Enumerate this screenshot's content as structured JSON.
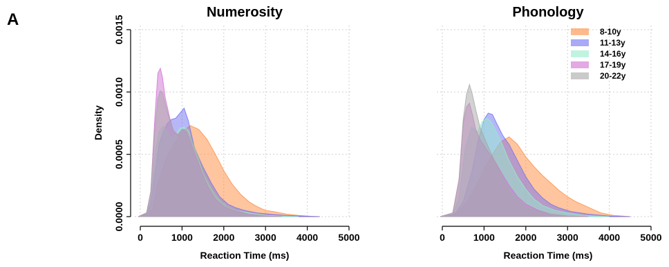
{
  "figure": {
    "panel_letter": "A"
  },
  "chart_data": [
    {
      "type": "area",
      "title": "Numerosity",
      "xlabel": "Reaction Time (ms)",
      "ylabel": "Density",
      "xlim": [
        0,
        5000
      ],
      "ylim": [
        0,
        0.0015
      ],
      "xticks": [
        "0",
        "1000",
        "2000",
        "3000",
        "4000",
        "5000"
      ],
      "yticks": [
        "0.0000",
        "0.0005",
        "0.0010",
        "0.0015"
      ],
      "grid": true,
      "legend": false,
      "series": [
        {
          "name": "8-10y",
          "color": "#ff8c3f",
          "x": [
            -50,
            150,
            300,
            400,
            600,
            800,
            1000,
            1200,
            1400,
            1600,
            1800,
            2000,
            2200,
            2400,
            2600,
            2800,
            3000,
            3200,
            3500,
            3800,
            4100,
            4300
          ],
          "y": [
            0,
            1e-05,
            6e-05,
            0.00025,
            0.00045,
            0.00058,
            0.00068,
            0.00073,
            0.0007,
            0.00062,
            0.0005,
            0.00037,
            0.00026,
            0.00018,
            0.00012,
            8e-05,
            5e-05,
            4e-05,
            2e-05,
            1e-05,
            3e-06,
            0
          ]
        },
        {
          "name": "11-13y",
          "color": "#6f6ff2",
          "x": [
            -50,
            150,
            250,
            350,
            450,
            550,
            650,
            750,
            850,
            950,
            1050,
            1150,
            1300,
            1500,
            1700,
            1900,
            2100,
            2300,
            2500,
            2800,
            3100,
            3500,
            4000,
            4300
          ],
          "y": [
            0,
            2e-05,
            0.0001,
            0.00035,
            0.00058,
            0.00068,
            0.00075,
            0.00078,
            0.00079,
            0.00083,
            0.00087,
            0.00077,
            0.00055,
            0.0004,
            0.00027,
            0.00016,
            0.0001,
            7e-05,
            5e-05,
            3e-05,
            2e-05,
            1e-05,
            3e-06,
            0
          ]
        },
        {
          "name": "14-16y",
          "color": "#96eccc",
          "x": [
            -50,
            150,
            250,
            350,
            450,
            550,
            650,
            750,
            850,
            950,
            1050,
            1150,
            1300,
            1500,
            1700,
            1900,
            2100,
            2300,
            2600,
            3000,
            3500,
            3800
          ],
          "y": [
            0,
            3e-05,
            0.00015,
            0.0005,
            0.00068,
            0.00073,
            0.00068,
            0.00062,
            0.00066,
            0.00071,
            0.00072,
            0.00069,
            0.00055,
            0.00035,
            0.00022,
            0.00013,
            8e-05,
            5e-05,
            3e-05,
            1e-05,
            3e-06,
            0
          ]
        },
        {
          "name": "17-19y",
          "color": "#cf6fd3",
          "x": [
            -50,
            150,
            250,
            350,
            420,
            480,
            530,
            600,
            700,
            800,
            900,
            1000,
            1100,
            1200,
            1400,
            1600,
            1800,
            2000,
            2300,
            2600,
            3000,
            3400
          ],
          "y": [
            0,
            3e-05,
            0.0002,
            0.0008,
            0.00115,
            0.00119,
            0.00112,
            0.00095,
            0.0008,
            0.00068,
            0.00065,
            0.0007,
            0.00068,
            0.0006,
            0.00042,
            0.00025,
            0.00014,
            8e-05,
            4e-05,
            2e-05,
            5e-06,
            0
          ]
        },
        {
          "name": "20-22y",
          "color": "#a6a6a6",
          "x": [
            -50,
            150,
            250,
            350,
            420,
            480,
            540,
            600,
            700,
            800,
            900,
            1000,
            1100,
            1200,
            1400,
            1600,
            1800,
            2000,
            2300,
            2600,
            3000,
            3400
          ],
          "y": [
            0,
            3e-05,
            0.0002,
            0.0007,
            0.00095,
            0.00101,
            0.00099,
            0.0009,
            0.00078,
            0.00069,
            0.00066,
            0.0007,
            0.0007,
            0.00064,
            0.00047,
            0.0003,
            0.00018,
            0.0001,
            5e-05,
            2e-05,
            5e-06,
            0
          ]
        }
      ]
    },
    {
      "type": "area",
      "title": "Phonology",
      "xlabel": "Reaction Time (ms)",
      "ylabel": "",
      "xlim": [
        0,
        5000
      ],
      "ylim": [
        0,
        0.0015
      ],
      "xticks": [
        "0",
        "1000",
        "2000",
        "3000",
        "4000",
        "5000"
      ],
      "grid": true,
      "legend": true,
      "legend_position": "top-right",
      "series": [
        {
          "name": "8-10y",
          "color": "#ff8c3f",
          "x": [
            -50,
            200,
            400,
            600,
            800,
            1000,
            1200,
            1400,
            1600,
            1800,
            2000,
            2200,
            2400,
            2600,
            2800,
            3000,
            3200,
            3400,
            3600,
            3800,
            4100,
            4500
          ],
          "y": [
            0,
            1e-05,
            5e-05,
            0.00012,
            0.00024,
            0.00038,
            0.0005,
            0.0006,
            0.00064,
            0.00058,
            0.00048,
            0.0004,
            0.00033,
            0.00027,
            0.00021,
            0.00016,
            0.00012,
            9e-05,
            6e-05,
            3e-05,
            1e-05,
            0
          ]
        },
        {
          "name": "11-13y",
          "color": "#6f6ff2",
          "x": [
            -50,
            300,
            500,
            700,
            850,
            1000,
            1100,
            1200,
            1300,
            1450,
            1600,
            1800,
            2000,
            2200,
            2400,
            2600,
            2800,
            3100,
            3500,
            4000,
            4500
          ],
          "y": [
            0,
            2e-05,
            0.00012,
            0.00035,
            0.0006,
            0.00078,
            0.00083,
            0.00082,
            0.00075,
            0.00065,
            0.00058,
            0.00045,
            0.00032,
            0.00022,
            0.00015,
            0.0001,
            7e-05,
            4e-05,
            2e-05,
            5e-06,
            0
          ]
        },
        {
          "name": "14-16y",
          "color": "#96eccc",
          "x": [
            -50,
            250,
            400,
            550,
            700,
            850,
            950,
            1050,
            1150,
            1250,
            1400,
            1600,
            1800,
            2000,
            2200,
            2400,
            2700,
            3000,
            3400,
            4000
          ],
          "y": [
            0,
            2e-05,
            0.00015,
            0.00055,
            0.00072,
            0.00068,
            0.00076,
            0.00079,
            0.00077,
            0.00071,
            0.00061,
            0.00045,
            0.00032,
            0.00022,
            0.00014,
            9e-05,
            5e-05,
            3e-05,
            1e-05,
            0
          ]
        },
        {
          "name": "17-19y",
          "color": "#cf6fd3",
          "x": [
            -50,
            250,
            400,
            500,
            580,
            650,
            720,
            800,
            900,
            1000,
            1100,
            1250,
            1400,
            1600,
            1800,
            2000,
            2300,
            2600,
            3000,
            3500
          ],
          "y": [
            0,
            3e-05,
            0.0003,
            0.00075,
            0.00088,
            0.00091,
            0.00082,
            0.0007,
            0.00062,
            0.00057,
            0.00052,
            0.00045,
            0.00036,
            0.00025,
            0.00016,
            0.0001,
            5e-05,
            2e-05,
            5e-06,
            0
          ]
        },
        {
          "name": "20-22y",
          "color": "#a6a6a6",
          "x": [
            -50,
            250,
            400,
            500,
            580,
            650,
            720,
            800,
            900,
            1000,
            1100,
            1250,
            1400,
            1600,
            1800,
            2000,
            2300,
            2600,
            3000,
            3500
          ],
          "y": [
            0,
            3e-05,
            0.0003,
            0.00078,
            0.00098,
            0.00106,
            0.00098,
            0.00086,
            0.00072,
            0.00064,
            0.00056,
            0.00045,
            0.00034,
            0.00022,
            0.00014,
            8e-05,
            4e-05,
            2e-05,
            5e-06,
            0
          ]
        }
      ]
    }
  ]
}
